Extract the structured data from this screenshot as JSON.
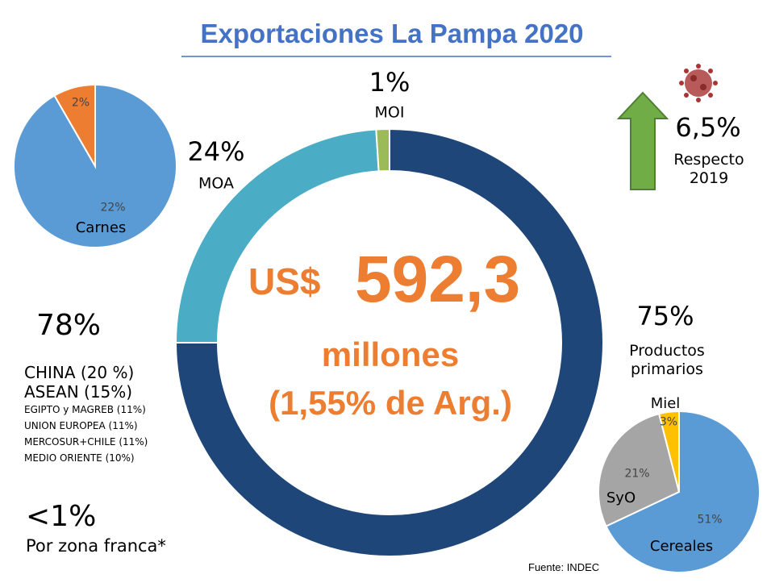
{
  "title": "Exportaciones La Pampa 2020",
  "chart_data": [
    {
      "type": "donut",
      "categories": [
        "Productos primarios",
        "MOA",
        "MOI"
      ],
      "values": [
        75,
        24,
        1
      ],
      "value_labels": [
        "75%",
        "24%",
        "1%"
      ],
      "colors": [
        "#1f4678",
        "#4bacc6",
        "#9bbb59"
      ]
    },
    {
      "type": "pie",
      "categories": [
        "Carnes",
        null
      ],
      "values": [
        22,
        2
      ],
      "value_labels": [
        "22%",
        "2%"
      ],
      "colors": [
        "#5b9bd5",
        "#ed7d31"
      ]
    },
    {
      "type": "pie",
      "categories": [
        "Cereales",
        "SyO",
        "Miel"
      ],
      "values": [
        51,
        21,
        3
      ],
      "value_labels": [
        "51%",
        "21%",
        "3%"
      ],
      "colors": [
        "#5b9bd5",
        "#a5a5a5",
        "#ffc000"
      ]
    }
  ],
  "center": {
    "currency": "US$",
    "amount": "592,3",
    "unit": "millones",
    "share": "(1,55% de Arg.)"
  },
  "destinations": {
    "share": "78%",
    "major": [
      "CHINA (20 %)",
      "ASEAN (15%)"
    ],
    "minor": [
      "EGIPTO y MAGREB (11%)",
      "UNION EUROPEA (11%)",
      "MERCOSUR+CHILE (11%)",
      "MEDIO ORIENTE (10%)"
    ]
  },
  "free_zone": {
    "share": "<1%",
    "label": "Por zona franca*"
  },
  "growth": {
    "value": "6,5%",
    "label": "Respecto 2019"
  },
  "source": "Fuente: INDEC"
}
